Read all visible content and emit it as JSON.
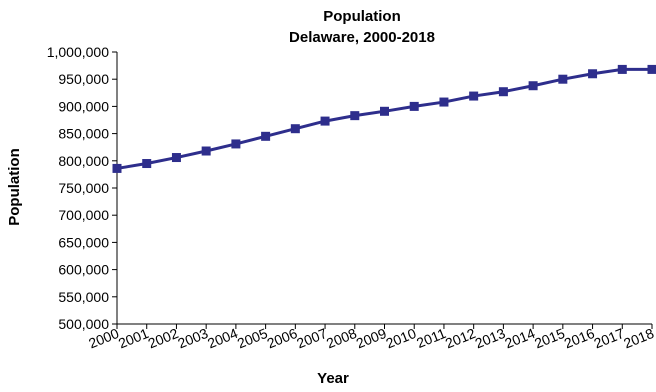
{
  "chart_data": {
    "type": "line",
    "title": "Population",
    "subtitle": "Delaware, 2000-2018",
    "xlabel": "Year",
    "ylabel": "Population",
    "ylim": [
      500000,
      1000000
    ],
    "y_ticks": [
      500000,
      550000,
      600000,
      650000,
      700000,
      750000,
      800000,
      850000,
      900000,
      950000,
      1000000
    ],
    "y_tick_labels": [
      "500,000",
      "550,000",
      "600,000",
      "650,000",
      "700,000",
      "750,000",
      "800,000",
      "850,000",
      "900,000",
      "950,000",
      "1,000,000"
    ],
    "categories": [
      "2000",
      "2001",
      "2002",
      "2003",
      "2004",
      "2005",
      "2006",
      "2007",
      "2008",
      "2009",
      "2010",
      "2011",
      "2012",
      "2013",
      "2014",
      "2015",
      "2016",
      "2017",
      "2018"
    ],
    "series": [
      {
        "values": [
          786000,
          795000,
          806000,
          818000,
          831000,
          845000,
          859000,
          873000,
          883000,
          891000,
          900000,
          908000,
          919000,
          927000,
          938000,
          950000,
          960000,
          968000,
          968000
        ]
      }
    ],
    "grid": false,
    "legend": "none",
    "line_color": "#2E2E8C",
    "marker": "square"
  }
}
